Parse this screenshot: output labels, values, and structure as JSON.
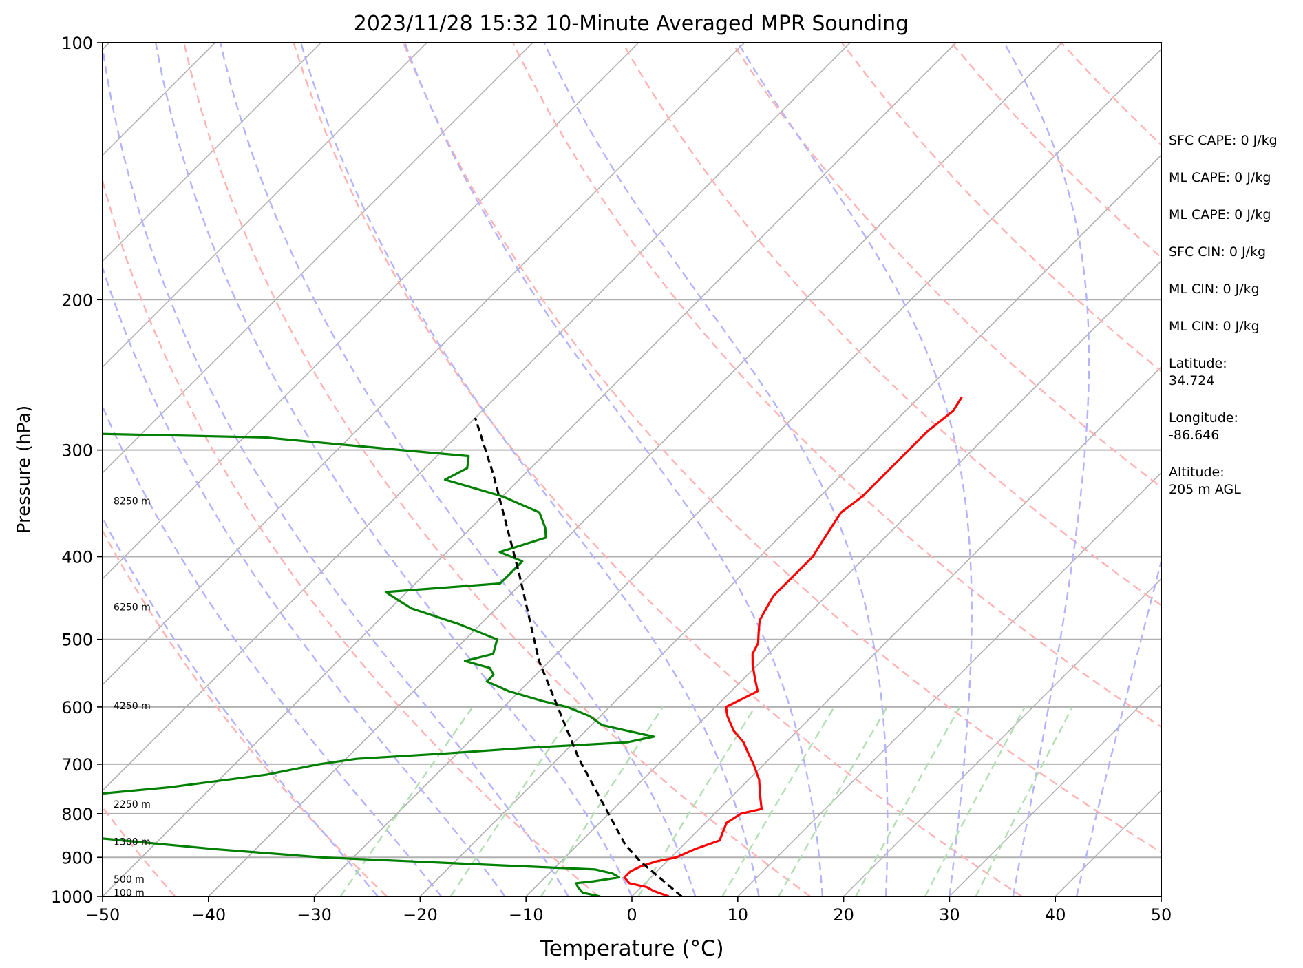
{
  "chart_data": {
    "type": "line",
    "title": "2023/11/28 15:32 10-Minute Averaged MPR Sounding",
    "xlabel": "Temperature (°C)",
    "ylabel": "Pressure (hPa)",
    "xlim": [
      -50,
      50
    ],
    "ylim": [
      1000,
      100
    ],
    "yscale": "log",
    "skew": "skew-T (isotherms slanted)",
    "grid": true,
    "xticks": [
      {
        "v": -50,
        "label": "−50"
      },
      {
        "v": -40,
        "label": "−40"
      },
      {
        "v": -30,
        "label": "−30"
      },
      {
        "v": -20,
        "label": "−20"
      },
      {
        "v": -10,
        "label": "−10"
      },
      {
        "v": 0,
        "label": "0"
      },
      {
        "v": 10,
        "label": "10"
      },
      {
        "v": 20,
        "label": "20"
      },
      {
        "v": 30,
        "label": "30"
      },
      {
        "v": 40,
        "label": "40"
      },
      {
        "v": 50,
        "label": "50"
      }
    ],
    "yticks": [
      {
        "v": 100,
        "label": "100"
      },
      {
        "v": 200,
        "label": "200"
      },
      {
        "v": 300,
        "label": "300"
      },
      {
        "v": 400,
        "label": "400"
      },
      {
        "v": 500,
        "label": "500"
      },
      {
        "v": 600,
        "label": "600"
      },
      {
        "v": 700,
        "label": "700"
      },
      {
        "v": 800,
        "label": "800"
      },
      {
        "v": 900,
        "label": "900"
      },
      {
        "v": 1000,
        "label": "1000"
      }
    ],
    "height_labels": [
      {
        "p": 344,
        "label": "8250 m"
      },
      {
        "p": 458,
        "label": "6250 m"
      },
      {
        "p": 598,
        "label": "4250 m"
      },
      {
        "p": 780,
        "label": "2250 m"
      },
      {
        "p": 863,
        "label": "1300 m"
      },
      {
        "p": 955,
        "label": "500 m"
      },
      {
        "p": 990,
        "label": "100 m"
      }
    ],
    "series": [
      {
        "color": "#ff0000",
        "points": [
          [
            3.5,
            1000
          ],
          [
            1.5,
            985
          ],
          [
            0.5,
            975
          ],
          [
            -1.5,
            965
          ],
          [
            -2.5,
            950
          ],
          [
            -2.5,
            935
          ],
          [
            -2,
            922
          ],
          [
            -1,
            910
          ],
          [
            0.5,
            900
          ],
          [
            1.5,
            880
          ],
          [
            3,
            860
          ],
          [
            2.5,
            840
          ],
          [
            2,
            820
          ],
          [
            2.5,
            800
          ],
          [
            4,
            790
          ],
          [
            3,
            770
          ],
          [
            2,
            750
          ],
          [
            1,
            730
          ],
          [
            -1,
            700
          ],
          [
            -2.5,
            680
          ],
          [
            -4,
            660
          ],
          [
            -6,
            640
          ],
          [
            -8,
            615
          ],
          [
            -9,
            600
          ],
          [
            -7.5,
            575
          ],
          [
            -9,
            555
          ],
          [
            -10.5,
            535
          ],
          [
            -11.5,
            520
          ],
          [
            -12,
            505
          ],
          [
            -13,
            490
          ],
          [
            -14,
            475
          ],
          [
            -14.5,
            460
          ],
          [
            -15,
            445
          ],
          [
            -15,
            430
          ],
          [
            -15,
            415
          ],
          [
            -15,
            400
          ],
          [
            -15.5,
            385
          ],
          [
            -16,
            370
          ],
          [
            -16.5,
            355
          ],
          [
            -16,
            340
          ],
          [
            -16,
            325
          ],
          [
            -16,
            310
          ],
          [
            -16,
            300
          ],
          [
            -16,
            285
          ],
          [
            -15.5,
            270
          ],
          [
            -16,
            260
          ]
        ]
      },
      {
        "color": "#008000",
        "points": [
          [
            -3,
            1000
          ],
          [
            -5,
            990
          ],
          [
            -6,
            975
          ],
          [
            -6.5,
            965
          ],
          [
            -5,
            960
          ],
          [
            -4,
            955
          ],
          [
            -3,
            950
          ],
          [
            -4,
            940
          ],
          [
            -6,
            930
          ],
          [
            -15,
            920
          ],
          [
            -24,
            910
          ],
          [
            -33,
            900
          ],
          [
            -44,
            880
          ],
          [
            -58,
            850
          ],
          [
            -62,
            845
          ],
          [
            -64,
            830
          ],
          [
            -67,
            815
          ],
          [
            -69,
            800
          ],
          [
            -71,
            790
          ],
          [
            -71,
            780
          ],
          [
            -63,
            765
          ],
          [
            -54,
            745
          ],
          [
            -46,
            720
          ],
          [
            -42,
            700
          ],
          [
            -39,
            690
          ],
          [
            -31,
            680
          ],
          [
            -24,
            670
          ],
          [
            -15,
            660
          ],
          [
            -13,
            650
          ],
          [
            -16,
            640
          ],
          [
            -19,
            630
          ],
          [
            -21,
            615
          ],
          [
            -24,
            600
          ],
          [
            -27,
            590
          ],
          [
            -31,
            575
          ],
          [
            -34,
            560
          ],
          [
            -34,
            550
          ],
          [
            -35,
            540
          ],
          [
            -38,
            530
          ],
          [
            -36,
            520
          ],
          [
            -37,
            500
          ],
          [
            -42,
            480
          ],
          [
            -48,
            460
          ],
          [
            -50,
            450
          ],
          [
            -52,
            440
          ],
          [
            -42,
            430
          ],
          [
            -42,
            415
          ],
          [
            -42,
            405
          ],
          [
            -45,
            395
          ],
          [
            -42,
            380
          ],
          [
            -43,
            370
          ],
          [
            -45,
            355
          ],
          [
            -50,
            340
          ],
          [
            -57,
            325
          ],
          [
            -56,
            315
          ],
          [
            -57,
            305
          ],
          [
            -64,
            300
          ],
          [
            -78,
            290
          ],
          [
            -95,
            287
          ],
          [
            -130,
            287
          ]
        ]
      },
      {
        "color": "#000000",
        "dashed": true,
        "points": [
          [
            4.7,
            1000
          ],
          [
            -2.5,
            910
          ],
          [
            -5.5,
            870
          ],
          [
            -18,
            690
          ],
          [
            -31,
            530
          ],
          [
            -41,
            420
          ],
          [
            -53,
            320
          ],
          [
            -60,
            275
          ]
        ]
      }
    ],
    "dry_adiabats_theta_K": [
      210,
      230,
      250,
      270,
      290,
      310,
      330,
      350,
      370,
      390,
      410,
      430,
      450
    ],
    "moist_adiabats_start_C": [
      -24,
      -18,
      -12,
      -6,
      0,
      6,
      12,
      18,
      24,
      30,
      36,
      42
    ],
    "mixing_lines_gkg": [
      0.4,
      1,
      2,
      4,
      7,
      10,
      16,
      24,
      32
    ],
    "colors": {
      "isotherm": "#b0b0b0",
      "isobar": "#b0b0b0",
      "dry_adiabat": "#ffb3b3",
      "moist_adiabat": "#b3b3ff",
      "mixing_line": "#b3e0b3"
    }
  },
  "side_panel": [
    {
      "id": "sfc_cape",
      "text": "SFC CAPE: 0 J/kg"
    },
    {
      "id": "ml_cape_1",
      "text": "ML CAPE: 0 J/kg"
    },
    {
      "id": "ml_cape_2",
      "text": "ML CAPE: 0 J/kg"
    },
    {
      "id": "sfc_cin",
      "text": "SFC CIN: 0 J/kg"
    },
    {
      "id": "ml_cin_1",
      "text": "ML CIN: 0 J/kg"
    },
    {
      "id": "ml_cin_2",
      "text": "ML CIN: 0 J/kg"
    },
    {
      "id": "lat",
      "text": "Latitude:",
      "text2": "34.724"
    },
    {
      "id": "lon",
      "text": "Longitude:",
      "text2": "-86.646"
    },
    {
      "id": "alt",
      "text": "Altitude:",
      "text2": "205 m AGL"
    }
  ]
}
